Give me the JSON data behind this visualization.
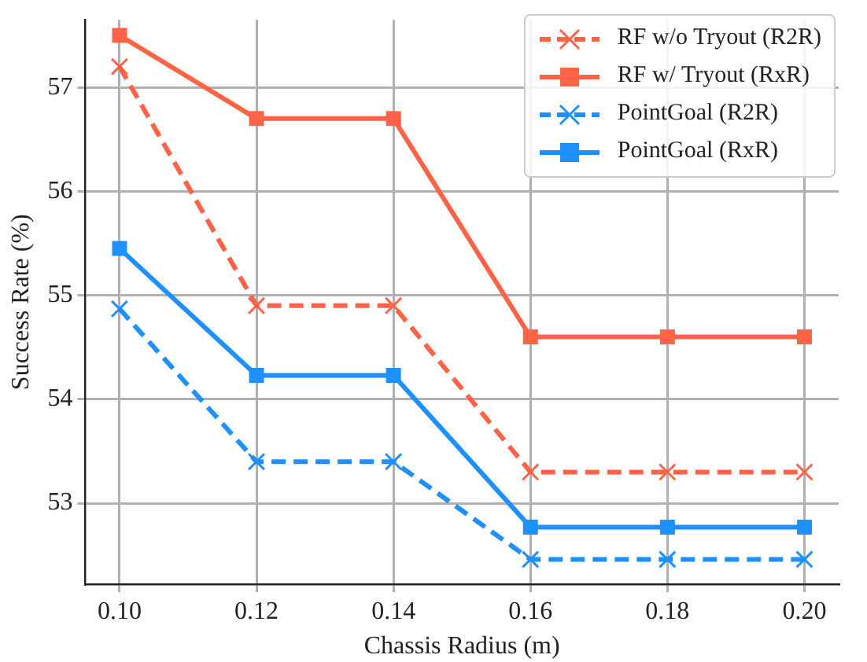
{
  "chart_data": {
    "type": "line",
    "xlabel": "Chassis Radius (m)",
    "ylabel": "Success Rate (%)",
    "x": [
      0.1,
      0.12,
      0.14,
      0.16,
      0.18,
      0.2
    ],
    "series": [
      {
        "name": "RF w/o Tryout (R2R)",
        "color": "#ff6347",
        "marker": "cross",
        "line_style": "dashed",
        "values": [
          57.2,
          54.9,
          54.9,
          53.3,
          53.3,
          53.3
        ]
      },
      {
        "name": "RF w/ Tryout (RxR)",
        "color": "#ff6347",
        "marker": "square",
        "line_style": "solid",
        "values": [
          57.5,
          56.7,
          56.7,
          54.6,
          54.6,
          54.6
        ]
      },
      {
        "name": "PointGoal (R2R)",
        "color": "#1e90ff",
        "marker": "cross",
        "line_style": "dashed",
        "values": [
          54.87,
          53.4,
          53.4,
          52.46,
          52.46,
          52.46
        ]
      },
      {
        "name": "PointGoal (RxR)",
        "color": "#1e90ff",
        "marker": "square",
        "line_style": "solid",
        "values": [
          55.45,
          54.23,
          54.23,
          52.77,
          52.77,
          52.77
        ]
      }
    ],
    "xlim": [
      0.095,
      0.205
    ],
    "xticks": [
      {
        "value": 0.1,
        "label": "0.10"
      },
      {
        "value": 0.12,
        "label": "0.12"
      },
      {
        "value": 0.14,
        "label": "0.14"
      },
      {
        "value": 0.16,
        "label": "0.16"
      },
      {
        "value": 0.18,
        "label": "0.18"
      },
      {
        "value": 0.2,
        "label": "0.20"
      }
    ],
    "ylim": [
      52.22,
      57.65
    ],
    "yticks": [
      53,
      54,
      55,
      56,
      57
    ],
    "grid": true,
    "legend": "top right"
  }
}
